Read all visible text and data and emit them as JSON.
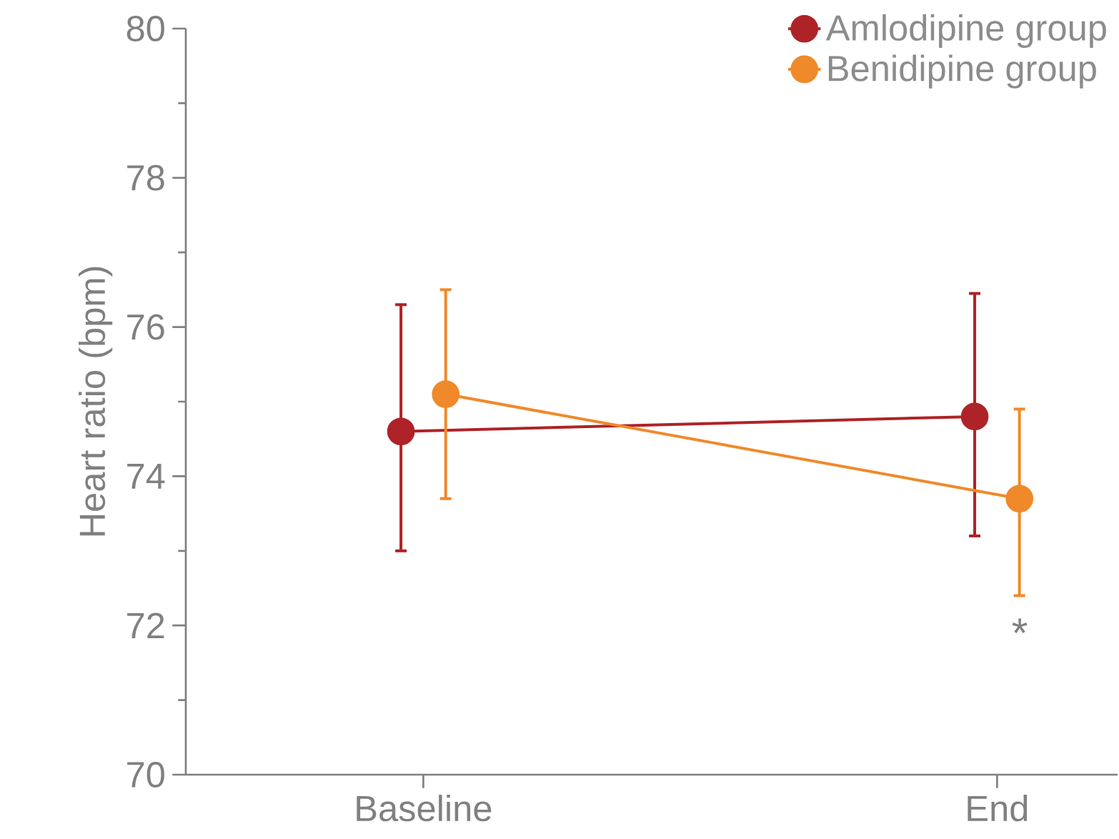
{
  "chart_data": {
    "type": "line",
    "ylabel": "Heart ratio (bpm)",
    "categories": [
      "Baseline",
      "End"
    ],
    "series": [
      {
        "name": "Amlodipine group",
        "color": "#ae2327",
        "values": [
          74.6,
          74.8
        ],
        "errors": [
          [
            73.0,
            76.3
          ],
          [
            73.2,
            76.45
          ]
        ]
      },
      {
        "name": "Benidipine group",
        "color": "#f0892a",
        "values": [
          75.1,
          73.7
        ],
        "errors": [
          [
            73.7,
            76.5
          ],
          [
            72.4,
            74.9
          ]
        ]
      }
    ],
    "ylim": [
      70,
      80
    ],
    "yticks": [
      70,
      72,
      74,
      76,
      78,
      80
    ],
    "marker": "circle",
    "line_style": "solid",
    "legend": "top right",
    "grid": false,
    "annotations": [
      "*"
    ]
  }
}
